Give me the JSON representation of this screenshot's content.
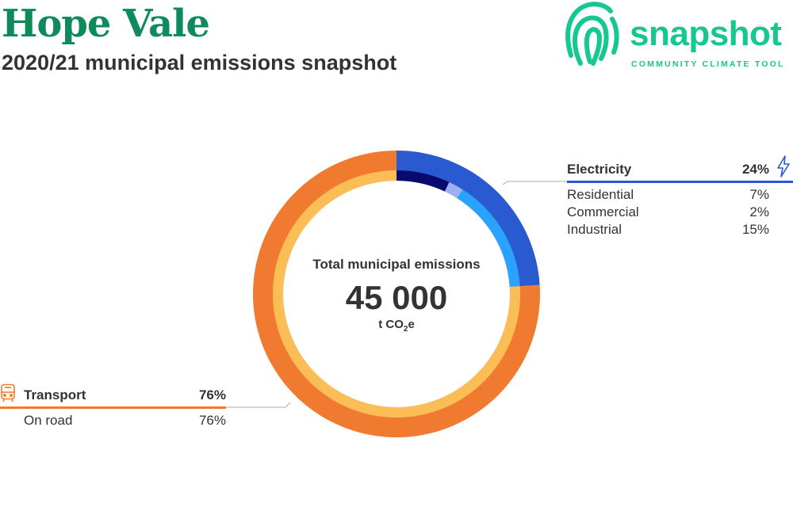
{
  "header": {
    "title": "Hope Vale",
    "subtitle": "2020/21 municipal emissions snapshot"
  },
  "logo": {
    "word": "snapshot",
    "tagline": "COMMUNITY CLIMATE TOOL",
    "color": "#14c88e"
  },
  "center": {
    "label": "Total municipal emissions",
    "value": "45 000",
    "unit_prefix": "t CO",
    "unit_sub": "2",
    "unit_suffix": "e"
  },
  "electricity": {
    "label": "Electricity",
    "value": "24%",
    "icon": "lightning-bolt-icon",
    "rows": [
      {
        "label": "Residential",
        "value": "7%"
      },
      {
        "label": "Commercial",
        "value": "2%"
      },
      {
        "label": "Industrial",
        "value": "15%"
      }
    ]
  },
  "transport": {
    "label": "Transport",
    "value": "76%",
    "icon": "bus-icon",
    "rows": [
      {
        "label": "On road",
        "value": "76%"
      }
    ]
  },
  "chart_data": {
    "type": "pie",
    "style": "donut",
    "title": "Total municipal emissions",
    "total": 45000,
    "unit": "t CO2e",
    "outer_ring": [
      {
        "name": "Electricity",
        "value": 24,
        "color": "#2a5ad0"
      },
      {
        "name": "Transport",
        "value": 76,
        "color": "#f07a30"
      }
    ],
    "inner_ring": [
      {
        "name": "Residential",
        "value": 7,
        "color": "#0a0a6e"
      },
      {
        "name": "Commercial",
        "value": 2,
        "color": "#9fb0f0"
      },
      {
        "name": "Industrial",
        "value": 15,
        "color": "#2aa2ff"
      },
      {
        "name": "On road",
        "value": 76,
        "color": "#fbbd55"
      }
    ]
  }
}
